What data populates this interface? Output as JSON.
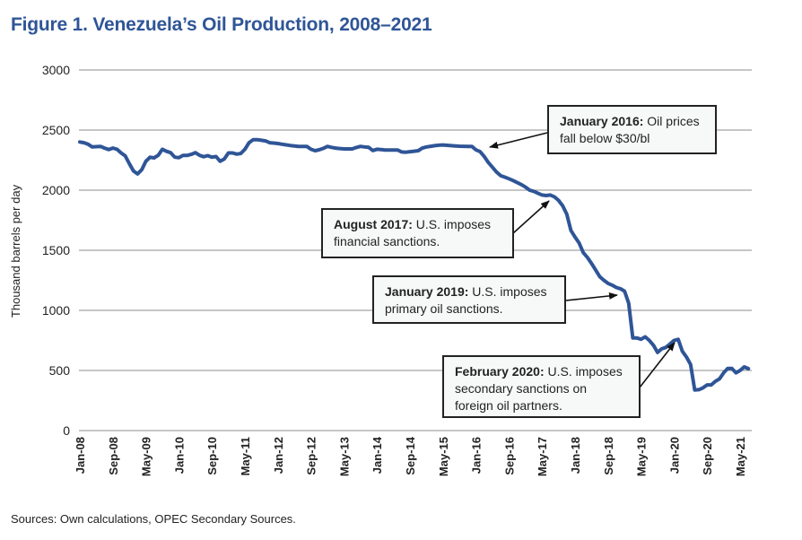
{
  "chart_data": {
    "type": "line",
    "title": "Figure 1. Venezuela’s Oil Production, 2008–2021",
    "ylabel": "Thousand barrels per day",
    "xlabel": "",
    "ylim": [
      0,
      3000
    ],
    "yticks": [
      0,
      500,
      1000,
      1500,
      2000,
      2500,
      3000
    ],
    "grid": true,
    "x_start": "Jan-08",
    "x_frequency": "monthly",
    "xticks": [
      "Jan-08",
      "Sep-08",
      "May-09",
      "Jan-10",
      "Sep-10",
      "May-11",
      "Jan-12",
      "Sep-12",
      "May-13",
      "Jan-14",
      "Sep-14",
      "May-15",
      "Jan-16",
      "Sep-16",
      "May-17",
      "Jan-18",
      "Sep-18",
      "May-19",
      "Jan-20",
      "Sep-20",
      "May-21"
    ],
    "series": [
      {
        "color": "#2f5597",
        "values": [
          2401,
          2395,
          2382,
          2360,
          2362,
          2364,
          2350,
          2338,
          2350,
          2340,
          2310,
          2285,
          2220,
          2160,
          2135,
          2170,
          2240,
          2274,
          2269,
          2290,
          2340,
          2323,
          2312,
          2275,
          2270,
          2289,
          2289,
          2298,
          2312,
          2290,
          2278,
          2287,
          2275,
          2280,
          2240,
          2260,
          2310,
          2310,
          2300,
          2305,
          2340,
          2395,
          2420,
          2420,
          2415,
          2410,
          2395,
          2392,
          2388,
          2382,
          2377,
          2372,
          2368,
          2364,
          2364,
          2364,
          2340,
          2328,
          2336,
          2348,
          2364,
          2356,
          2350,
          2346,
          2343,
          2343,
          2343,
          2355,
          2364,
          2360,
          2356,
          2330,
          2340,
          2337,
          2334,
          2334,
          2334,
          2334,
          2318,
          2316,
          2320,
          2324,
          2328,
          2350,
          2360,
          2365,
          2370,
          2374,
          2376,
          2373,
          2370,
          2368,
          2366,
          2365,
          2364,
          2364,
          2335,
          2320,
          2280,
          2230,
          2190,
          2150,
          2120,
          2108,
          2095,
          2080,
          2063,
          2046,
          2025,
          2000,
          1990,
          1975,
          1960,
          1955,
          1960,
          1945,
          1915,
          1870,
          1800,
          1665,
          1610,
          1560,
          1480,
          1440,
          1390,
          1335,
          1280,
          1250,
          1225,
          1210,
          1190,
          1180,
          1160,
          1060,
          770,
          770,
          760,
          780,
          750,
          710,
          650,
          680,
          692,
          720,
          750,
          759,
          660,
          612,
          550,
          338,
          340,
          355,
          380,
          380,
          410,
          430,
          480,
          517,
          517,
          480,
          500,
          530,
          515
        ]
      }
    ],
    "annotations": [
      {
        "bold": "January 2016:",
        "text": " Oil prices fall below $30/bl",
        "points_to": "Jan-16"
      },
      {
        "bold": "August 2017:",
        "text": " U.S. imposes financial sanctions.",
        "points_to": "Aug-17"
      },
      {
        "bold": "January 2019:",
        "text": " U.S. imposes primary oil sanctions.",
        "points_to": "Jan-19"
      },
      {
        "bold": "February 2020:",
        "text": " U.S. imposes secondary sanctions on foreign oil partners.",
        "points_to": "Feb-20"
      }
    ]
  },
  "source": "Sources: Own calculations, OPEC Secondary Sources."
}
